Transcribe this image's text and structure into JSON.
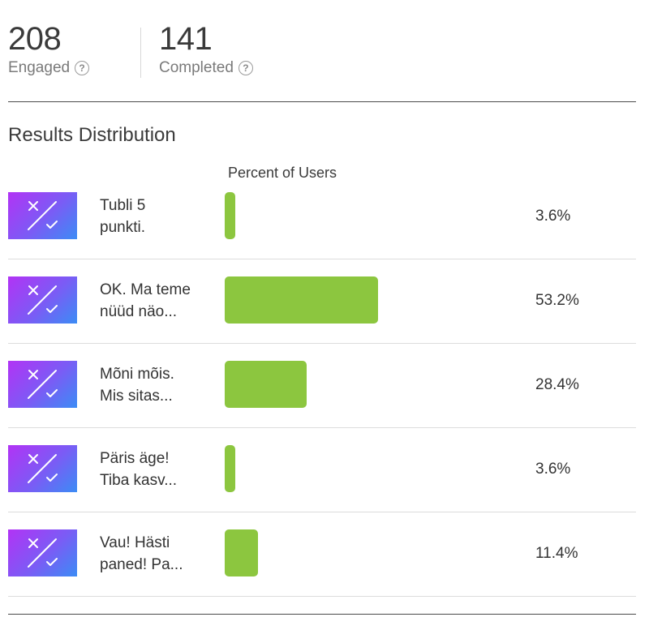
{
  "stats": {
    "engaged": {
      "value": "208",
      "label": "Engaged"
    },
    "completed": {
      "value": "141",
      "label": "Completed"
    }
  },
  "section_title": "Results Distribution",
  "column_header": "Percent of Users",
  "colors": {
    "bar": "#8cc63f",
    "thumb_start": "#b233f5",
    "thumb_end": "#3b8cf5"
  },
  "results": [
    {
      "label": "Tubli 5\npunkti.",
      "percent": 3.6,
      "percent_label": "3.6%"
    },
    {
      "label": "OK. Ma teme\nnüüd näo...",
      "percent": 53.2,
      "percent_label": "53.2%"
    },
    {
      "label": "Mõni mõis.\nMis sitas...",
      "percent": 28.4,
      "percent_label": "28.4%"
    },
    {
      "label": "Päris äge!\nTiba kasv...",
      "percent": 3.6,
      "percent_label": "3.6%"
    },
    {
      "label": "Vau! Hästi\npaned! Pa...",
      "percent": 11.4,
      "percent_label": "11.4%"
    }
  ]
}
